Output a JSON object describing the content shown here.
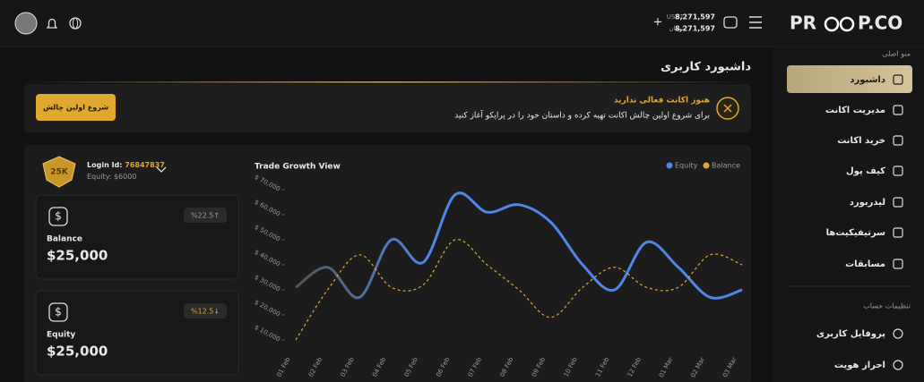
{
  "header": {
    "logo_left": "PR",
    "logo_right": "P.CO",
    "usdt_label": "USDT",
    "usdt_amount": "8,271,597",
    "toman_label": "تومان",
    "toman_amount": "8,271,597",
    "add": "+"
  },
  "sidebar": {
    "main_menu": "منو اصلی",
    "items": [
      "داشبورد",
      "مدیریت اکانت",
      "خرید اکانت",
      "کیف پول",
      "لیدربورد",
      "سرتیفیکیت‌ها",
      "مسابقات"
    ],
    "settings": "تنظیمات حساب",
    "settings_items": [
      "پروفایل کاربری",
      "احراز هویت"
    ]
  },
  "main": {
    "title": "داشبورد کاربری",
    "banner": {
      "heading": "هنوز اکانت فعالی ندارید",
      "text": "برای شروع اولین چالش اکانت تهیه کرده و داستان خود را در پراپکو آغاز کنید",
      "button": "شروع اولین چالش"
    },
    "account": {
      "badge": "25K",
      "login_label": "Login Id:",
      "login_id": "76847837",
      "equity_label": "Equity:",
      "equity": "$6000"
    },
    "cards": [
      {
        "change": "%22.5↑",
        "label": "Balance",
        "amount": "$25,000"
      },
      {
        "change": "%12.5↓",
        "label": "Equity",
        "amount": "$25,000"
      }
    ]
  },
  "chart_data": {
    "type": "line",
    "title": "Trade Growth View",
    "categories": [
      "01 Feb",
      "02 Feb",
      "03 Feb",
      "04 Feb",
      "05 Feb",
      "06 Feb",
      "07 Feb",
      "08 Feb",
      "09 Feb",
      "10 Feb",
      "11 Feb",
      "12 Feb",
      "01 Mar",
      "02 Mar",
      "03 Mar"
    ],
    "series": [
      {
        "name": "Equity",
        "color": "#4f86e8",
        "values": [
          31000,
          39000,
          27000,
          50000,
          41000,
          68000,
          61000,
          64000,
          57000,
          40000,
          30000,
          49000,
          39000,
          27000,
          30000
        ]
      },
      {
        "name": "Balance",
        "color": "#e0a82e",
        "values": [
          10000,
          30000,
          44000,
          31000,
          32000,
          50000,
          40000,
          30000,
          19000,
          31000,
          39000,
          31000,
          31000,
          44000,
          40000
        ]
      }
    ],
    "ylim": [
      10000,
      70000
    ],
    "yticks": [
      {
        "value": 10000,
        "label": "$ 10,000"
      },
      {
        "value": 20000,
        "label": "$ 20,000"
      },
      {
        "value": 30000,
        "label": "$ 30,000"
      },
      {
        "value": 40000,
        "label": "$ 40,000"
      },
      {
        "value": 50000,
        "label": "$ 50,000"
      },
      {
        "value": 60000,
        "label": "$ 60,000"
      },
      {
        "value": 70000,
        "label": "$ 70,000"
      }
    ]
  }
}
